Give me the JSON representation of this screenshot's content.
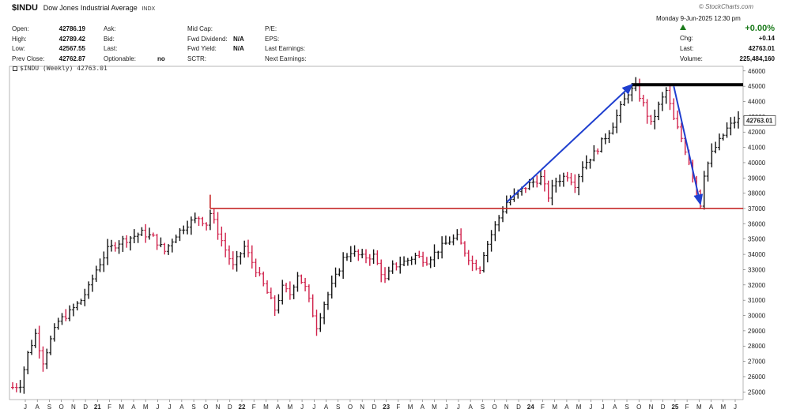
{
  "header": {
    "ticker": "$INDU",
    "name": "Dow Jones Industrial Average",
    "exchange": "INDX",
    "logo": "© StockCharts.com"
  },
  "quote": {
    "open_label": "Open:",
    "open": "42786.19",
    "high_label": "High:",
    "high": "42789.42",
    "low_label": "Low:",
    "low": "42567.55",
    "prev_label": "Prev Close:",
    "prev": "42762.87",
    "ask_label": "Ask:",
    "bid_label": "Bid:",
    "last_label": "Last:",
    "optionable_label": "Optionable:",
    "optionable": "no",
    "midcap_label": "Mid Cap:",
    "fwd_div_label": "Fwd Dividend:",
    "fwd_div": "N/A",
    "fwd_yield_label": "Fwd Yield:",
    "fwd_yield": "N/A",
    "sctr_label": "SCTR:",
    "pe_label": "P/E:",
    "eps_label": "EPS:",
    "last_earn_label": "Last Earnings:",
    "next_earn_label": "Next Earnings:"
  },
  "status": {
    "date": "Monday  9-Jun-2025  12:30 pm",
    "pct_change": "+0.00%",
    "chg_label": "Chg:",
    "chg": "+0.14",
    "last_label": "Last:",
    "last": "42763.01",
    "volume_label": "Volume:",
    "volume": "225,484,160"
  },
  "chart_label": "$INDU (Weekly) 42763.01",
  "colors": {
    "up_bar": "#111111",
    "down_bar": "#d0204a",
    "support_line": "#c62828",
    "arrow": "#1f3fcf",
    "resistance_line": "#000000"
  },
  "chart_data": {
    "type": "ohlc-bar",
    "interval": "weekly",
    "y_ticks": [
      25000,
      26000,
      27000,
      28000,
      29000,
      30000,
      31000,
      32000,
      33000,
      34000,
      35000,
      36000,
      37000,
      38000,
      39000,
      40000,
      41000,
      42000,
      43000,
      44000,
      45000,
      46000
    ],
    "ylim": [
      24500,
      46300
    ],
    "last_value_tag": "42763.01",
    "x_labels": [
      "J",
      "A",
      "S",
      "O",
      "N",
      "D",
      "21",
      "F",
      "M",
      "A",
      "M",
      "J",
      "J",
      "A",
      "S",
      "O",
      "N",
      "D",
      "22",
      "F",
      "M",
      "A",
      "M",
      "J",
      "J",
      "A",
      "S",
      "O",
      "N",
      "D",
      "23",
      "F",
      "M",
      "A",
      "M",
      "J",
      "J",
      "A",
      "S",
      "O",
      "N",
      "D",
      "24",
      "F",
      "M",
      "A",
      "M",
      "J",
      "J",
      "A",
      "S",
      "O",
      "N",
      "D",
      "25",
      "F",
      "M",
      "A",
      "M",
      "J"
    ],
    "year_labels": [
      "21",
      "22",
      "23",
      "24",
      "25"
    ],
    "path_anchors": [
      [
        0,
        25300
      ],
      [
        2,
        25500
      ],
      [
        4,
        27500
      ],
      [
        6,
        28800
      ],
      [
        8,
        27000
      ],
      [
        10,
        28400
      ],
      [
        12,
        29600
      ],
      [
        15,
        30200
      ],
      [
        18,
        31000
      ],
      [
        20,
        31800
      ],
      [
        22,
        33000
      ],
      [
        25,
        34300
      ],
      [
        28,
        34800
      ],
      [
        31,
        35100
      ],
      [
        34,
        35400
      ],
      [
        37,
        35100
      ],
      [
        40,
        34200
      ],
      [
        43,
        35300
      ],
      [
        46,
        36000
      ],
      [
        49,
        36400
      ],
      [
        51,
        36000
      ],
      [
        52,
        36700
      ],
      [
        54,
        35500
      ],
      [
        56,
        34300
      ],
      [
        58,
        33200
      ],
      [
        61,
        34500
      ],
      [
        64,
        33000
      ],
      [
        67,
        31500
      ],
      [
        69,
        30400
      ],
      [
        71,
        31800
      ],
      [
        73,
        31400
      ],
      [
        75,
        32700
      ],
      [
        77,
        31800
      ],
      [
        79,
        30100
      ],
      [
        80,
        29300
      ],
      [
        82,
        30800
      ],
      [
        85,
        32500
      ],
      [
        87,
        33700
      ],
      [
        89,
        34200
      ],
      [
        92,
        33800
      ],
      [
        95,
        33900
      ],
      [
        98,
        32300
      ],
      [
        100,
        33200
      ],
      [
        103,
        33500
      ],
      [
        106,
        33900
      ],
      [
        109,
        33600
      ],
      [
        112,
        34300
      ],
      [
        115,
        34900
      ],
      [
        117,
        35100
      ],
      [
        119,
        34200
      ],
      [
        121,
        33400
      ],
      [
        123,
        33100
      ],
      [
        124,
        34100
      ],
      [
        126,
        35300
      ],
      [
        128,
        36400
      ],
      [
        130,
        37400
      ],
      [
        133,
        38000
      ],
      [
        136,
        38600
      ],
      [
        139,
        39000
      ],
      [
        141,
        37800
      ],
      [
        143,
        38800
      ],
      [
        146,
        39200
      ],
      [
        148,
        38600
      ],
      [
        150,
        39800
      ],
      [
        153,
        40600
      ],
      [
        156,
        41700
      ],
      [
        158,
        42500
      ],
      [
        160,
        43600
      ],
      [
        162,
        44600
      ],
      [
        164,
        44900
      ],
      [
        166,
        43800
      ],
      [
        168,
        42500
      ],
      [
        170,
        43700
      ],
      [
        172,
        44700
      ],
      [
        174,
        42800
      ],
      [
        176,
        41600
      ],
      [
        178,
        40100
      ],
      [
        180,
        38200
      ],
      [
        181,
        37300
      ],
      [
        182,
        39300
      ],
      [
        184,
        40600
      ],
      [
        186,
        41400
      ],
      [
        188,
        42200
      ],
      [
        190,
        42700
      ],
      [
        191,
        42763
      ]
    ],
    "annotations": {
      "support_level": 37000,
      "resistance_level": 45100,
      "uptrend_arrow": {
        "from": [
          130,
          37400
        ],
        "to": [
          163,
          45100
        ]
      },
      "drop_arrow": {
        "from": [
          174,
          45000
        ],
        "to": [
          181,
          37300
        ]
      }
    }
  }
}
